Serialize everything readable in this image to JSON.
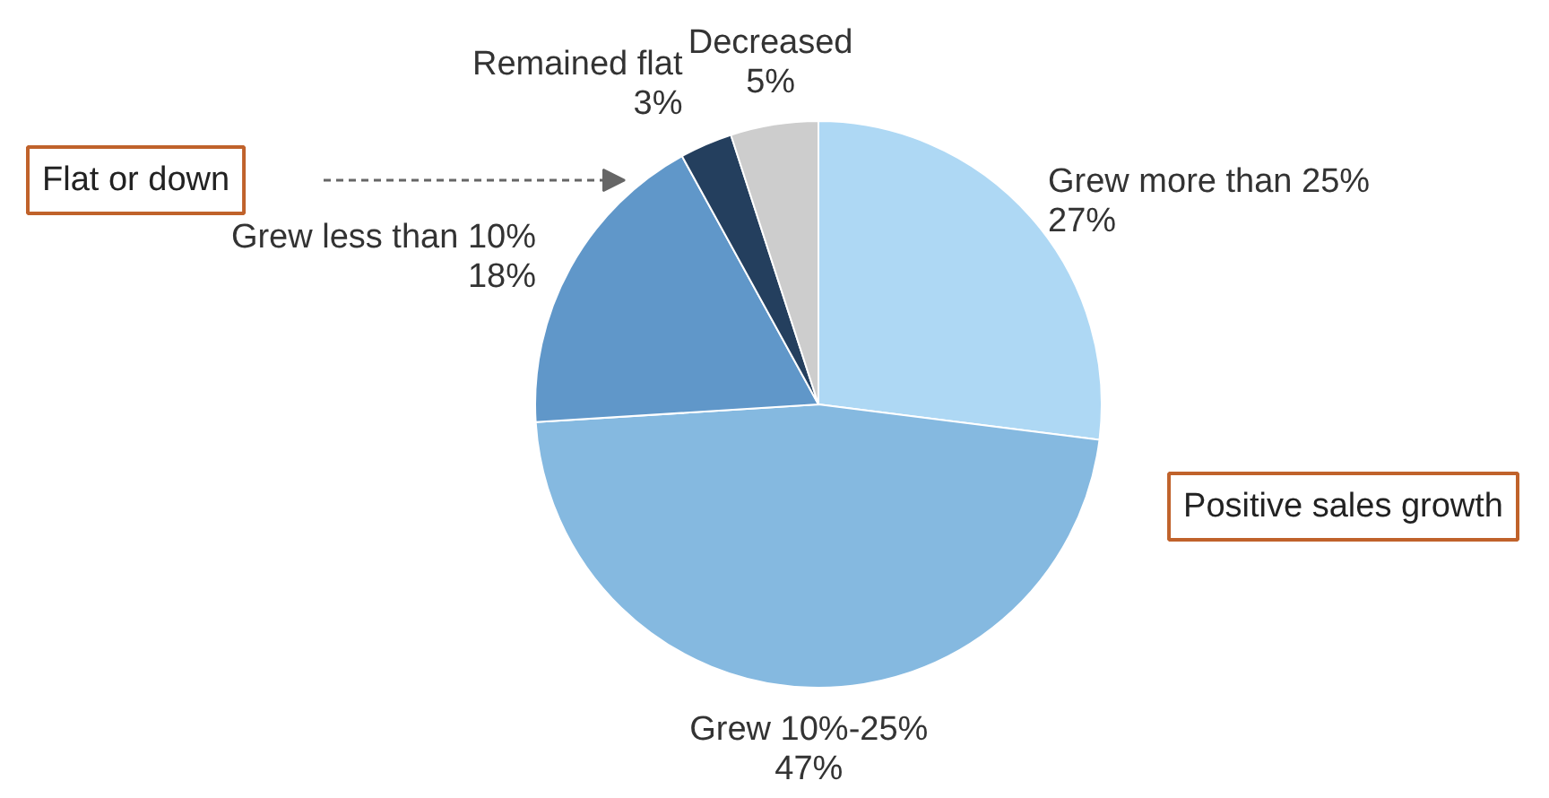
{
  "chart_data": {
    "type": "pie",
    "categories": [
      "Grew more than 25%",
      "Grew 10%-25%",
      "Grew less than 10%",
      "Remained flat",
      "Decreased"
    ],
    "values": [
      27,
      47,
      18,
      3,
      5
    ],
    "value_labels": [
      "27%",
      "47%",
      "18%",
      "3%",
      "5%"
    ],
    "colors": [
      "#aed8f4",
      "#85b9e0",
      "#6097c9",
      "#243f5e",
      "#cdcdcd"
    ],
    "annotations": [
      "Flat or down",
      "Positive sales growth"
    ]
  }
}
